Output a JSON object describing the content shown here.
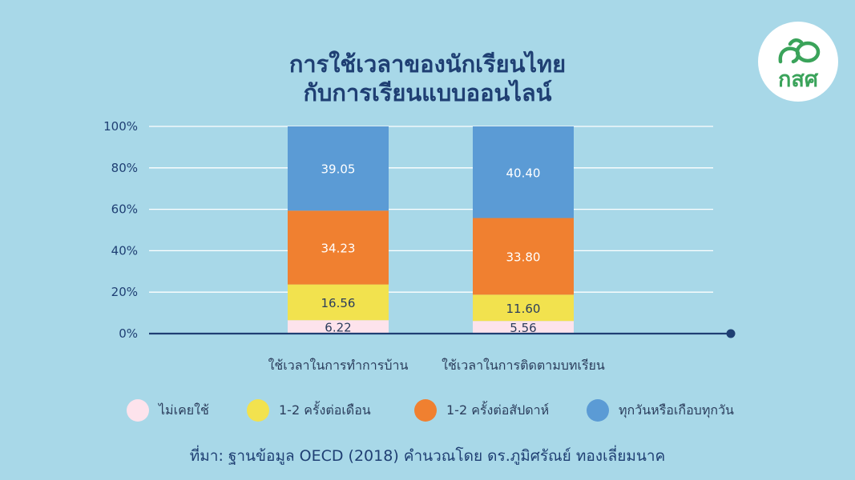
{
  "title_line1": "การใช้เวลาของนักเรียนไทย",
  "title_line2": "กับการเรียนแบบออนไลน์",
  "logo": {
    "text": "กสศ",
    "icon": "kses-logo-icon",
    "color": "#3aa35a"
  },
  "chart_data": {
    "type": "bar",
    "stacked": true,
    "categories": [
      "ใช้เวลาในการทำการบ้าน",
      "ใช้เวลาในการติดตามบทเรียน"
    ],
    "series": [
      {
        "name": "ไม่เคยใช้",
        "values": [
          6.22,
          5.56
        ],
        "labels": [
          "6.22",
          "5.56"
        ],
        "color": "#fde3ec"
      },
      {
        "name": "1-2 ครั้งต่อเดือน",
        "values": [
          16.56,
          11.6
        ],
        "labels": [
          "16.56",
          "11.60"
        ],
        "color": "#f2e24e"
      },
      {
        "name": "1-2 ครั้งต่อสัปดาห์",
        "values": [
          34.23,
          33.8
        ],
        "labels": [
          "34.23",
          "33.80"
        ],
        "color": "#f08030"
      },
      {
        "name": "ทุกวันหรือเกือบทุกวัน",
        "values": [
          39.05,
          40.4
        ],
        "labels": [
          "39.05",
          "40.40"
        ],
        "color": "#5b9bd5"
      }
    ],
    "yticks": [
      "0%",
      "20%",
      "40%",
      "60%",
      "80%",
      "100%"
    ],
    "ylim": [
      0,
      100
    ],
    "grid": true,
    "legend": "bottom"
  },
  "source": "ที่มา: ฐานข้อมูล OECD (2018) คำนวณโดย ดร.ภูมิศรัณย์ ทองเลี่ยมนาค"
}
